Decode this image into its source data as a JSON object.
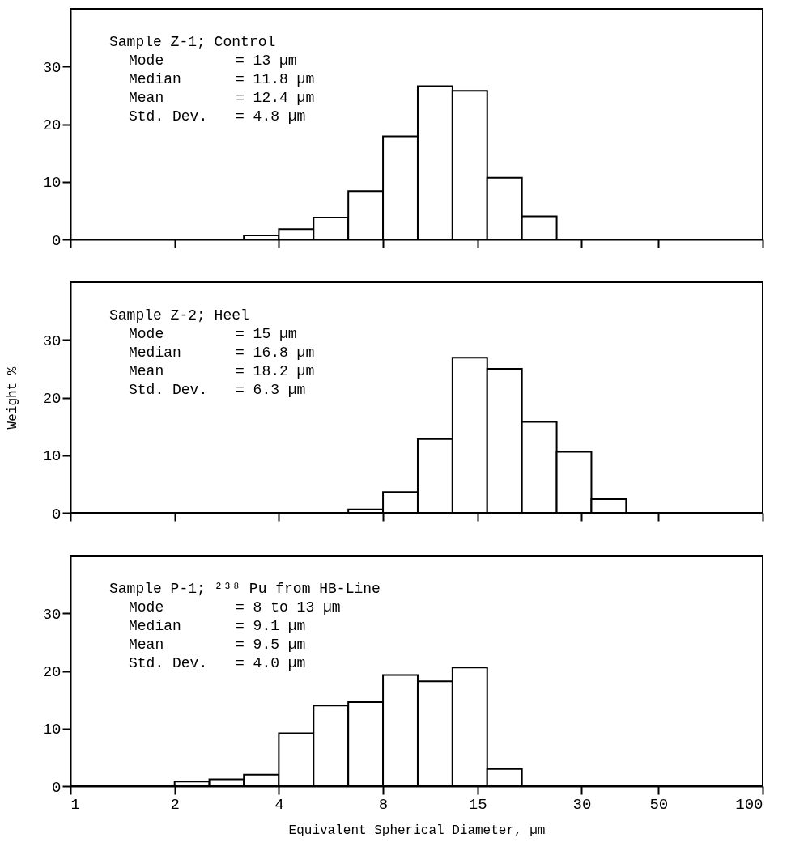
{
  "chart_data": [
    {
      "type": "histogram",
      "bins": [
        3.17,
        4,
        5.04,
        6.35,
        8,
        10.08,
        12.7,
        16,
        20.16,
        25.4
      ],
      "values": [
        0.7,
        1.8,
        3.8,
        8.4,
        17.9,
        26.6,
        25.8,
        10.7,
        4.0
      ],
      "log": "x",
      "xlim": [
        1,
        100
      ],
      "xticks": [
        1,
        2,
        4,
        8,
        15,
        30,
        50,
        100
      ],
      "ylim": [
        0,
        40
      ],
      "yticks": [
        0,
        10,
        20,
        30
      ],
      "tick_labels": "y",
      "grid": false,
      "annotations": [
        "Sample Z-1; Control",
        "Mode = 13 µm",
        "Median = 11.8 µm",
        "Mean = 12.4 µm",
        "Std. Dev. = 4.8 µm"
      ]
    },
    {
      "type": "histogram",
      "bins": [
        6.35,
        8,
        10.08,
        12.7,
        16,
        20.16,
        25.4,
        32,
        40.32
      ],
      "values": [
        0.6,
        3.6,
        12.8,
        26.9,
        25.0,
        15.8,
        10.6,
        2.4
      ],
      "log": "x",
      "xlim": [
        1,
        100
      ],
      "xticks": [
        1,
        2,
        4,
        8,
        15,
        30,
        50,
        100
      ],
      "ylim": [
        0,
        40
      ],
      "yticks": [
        0,
        10,
        20,
        30
      ],
      "tick_labels": "y",
      "grid": false,
      "ylabel": "Weight %",
      "annotations": [
        "Sample Z-2; Heel",
        "Mode = 15 µm",
        "Median = 16.8 µm",
        "Mean = 18.2 µm",
        "Std. Dev. = 6.3 µm"
      ]
    },
    {
      "type": "histogram",
      "bins": [
        2,
        2.52,
        3.17,
        4,
        5.04,
        6.35,
        8,
        10.08,
        12.7,
        16,
        20.16
      ],
      "values": [
        0.8,
        1.2,
        2.0,
        9.2,
        14.0,
        14.6,
        19.3,
        18.2,
        20.6,
        3.0
      ],
      "log": "x",
      "xlim": [
        1,
        100
      ],
      "xticks": [
        1,
        2,
        4,
        8,
        15,
        30,
        50,
        100
      ],
      "ylim": [
        0,
        40
      ],
      "yticks": [
        0,
        10,
        20,
        30
      ],
      "grid": false,
      "xlabel": "Equivalent Spherical Diameter, µm",
      "annotations": [
        "Sample P-1; ²³⁸ Pu from HB-Line",
        "Mode = 8 to 13 µm",
        "Median = 9.1 µm",
        "Mean = 9.5 µm",
        "Std. Dev. = 4.0 µm"
      ]
    }
  ]
}
